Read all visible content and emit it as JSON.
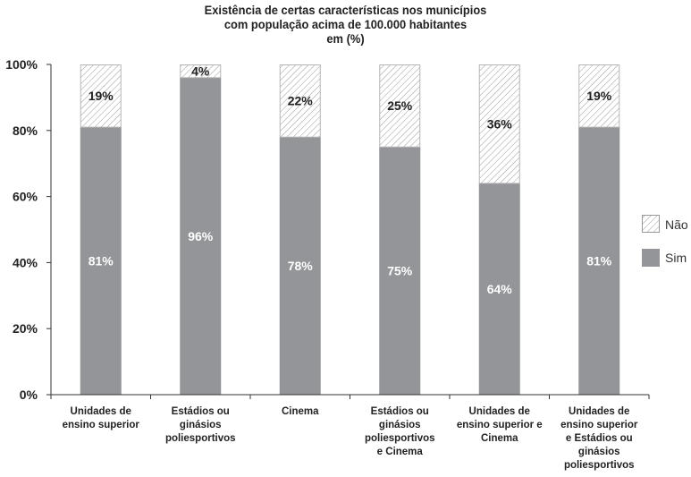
{
  "chart_data": {
    "type": "bar",
    "stacked": true,
    "title": [
      "Existência de certas características nos municípios",
      "com população acima de 100.000 habitantes",
      "em (%)"
    ],
    "categories": [
      [
        "Unidades de",
        "ensino superior"
      ],
      [
        "Estádios ou",
        "ginásios",
        "poliesportivos"
      ],
      [
        "Cinema"
      ],
      [
        "Estádios ou",
        "ginásios",
        "poliesportivos",
        "e Cinema"
      ],
      [
        "Unidades de",
        "ensino superior e",
        "Cinema"
      ],
      [
        "Unidades de",
        "ensino superior",
        "e Estádios ou",
        "ginásios",
        "poliesportivos"
      ]
    ],
    "series": [
      {
        "name": "Sim",
        "values": [
          81,
          96,
          78,
          75,
          64,
          81
        ],
        "labels": [
          "81%",
          "96%",
          "78%",
          "75%",
          "64%",
          "81%"
        ],
        "color": "#939598"
      },
      {
        "name": "Não",
        "values": [
          19,
          4,
          22,
          25,
          36,
          19
        ],
        "labels": [
          "19%",
          "4%",
          "22%",
          "25%",
          "36%",
          "19%"
        ],
        "pattern": "diagonal-hatch"
      }
    ],
    "yticks": [
      "0%",
      "20%",
      "40%",
      "60%",
      "80%",
      "100%"
    ],
    "ylim": [
      0,
      100
    ],
    "grid": false,
    "legend_position": "right"
  }
}
